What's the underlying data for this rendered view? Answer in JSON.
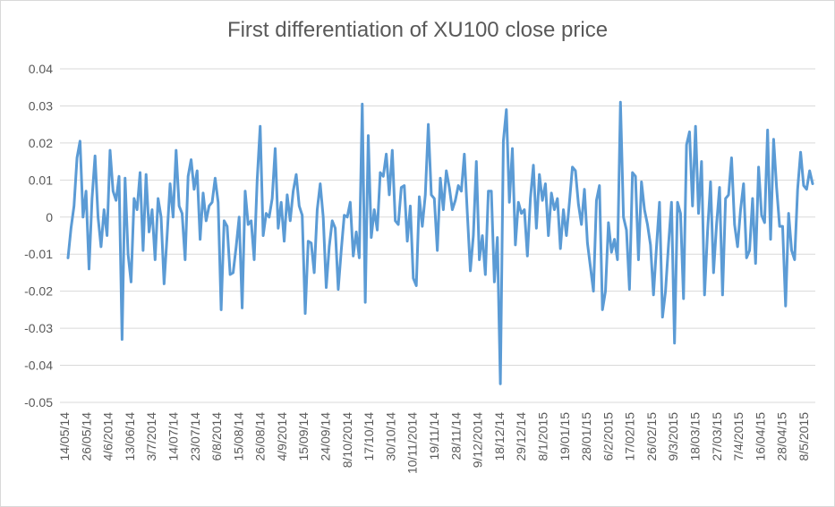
{
  "chart_data": {
    "type": "line",
    "title": "First differentiation of XU100 close price",
    "xlabel": "",
    "ylabel": "",
    "ylim": [
      -0.05,
      0.04
    ],
    "yticks": [
      "0.04",
      "0.03",
      "0.02",
      "0.01",
      "0",
      "-0.01",
      "-0.02",
      "-0.03",
      "-0.04",
      "-0.05"
    ],
    "ytick_values": [
      0.04,
      0.03,
      0.02,
      0.01,
      0,
      -0.01,
      -0.02,
      -0.03,
      -0.04,
      -0.05
    ],
    "grid": true,
    "legend": "none",
    "line_color": "#5b9bd5",
    "x_tick_labels": [
      "14/05/14",
      "26/05/14",
      "4/6/2014",
      "13/06/14",
      "3/7/2014",
      "14/07/14",
      "23/07/14",
      "6/8/2014",
      "15/08/14",
      "26/08/14",
      "4/9/2014",
      "15/09/14",
      "24/09/14",
      "8/10/2014",
      "17/10/14",
      "30/10/14",
      "10/11/2014",
      "19/11/14",
      "28/11/14",
      "9/12/2014",
      "18/12/14",
      "29/12/14",
      "8/1/2015",
      "19/01/15",
      "28/01/15",
      "6/2/2015",
      "17/02/15",
      "26/02/15",
      "9/3/2015",
      "18/03/15",
      "27/03/15",
      "7/4/2015",
      "16/04/15",
      "28/04/15",
      "8/5/2015"
    ],
    "values": [
      -0.011,
      -0.003,
      0.003,
      0.016,
      0.0205,
      0.0,
      0.007,
      -0.014,
      0.005,
      0.0165,
      0.0,
      -0.008,
      0.002,
      -0.005,
      0.018,
      0.007,
      0.0045,
      0.011,
      -0.033,
      0.0105,
      -0.01,
      -0.0175,
      0.005,
      0.002,
      0.012,
      -0.009,
      0.0115,
      -0.004,
      0.002,
      -0.0115,
      0.005,
      0.0,
      -0.018,
      -0.005,
      0.009,
      0.0,
      0.018,
      0.003,
      0.001,
      -0.0115,
      0.011,
      0.0155,
      0.0075,
      0.0125,
      -0.006,
      0.0065,
      -0.001,
      0.003,
      0.004,
      0.0105,
      0.004,
      -0.025,
      -0.001,
      -0.0025,
      -0.0155,
      -0.015,
      -0.008,
      0.0,
      -0.0245,
      0.007,
      -0.002,
      -0.001,
      -0.0115,
      0.01,
      0.0245,
      -0.005,
      0.001,
      0.0,
      0.005,
      0.0185,
      -0.003,
      0.004,
      -0.0065,
      0.006,
      -0.001,
      0.007,
      0.0115,
      0.003,
      0.0005,
      -0.026,
      -0.0065,
      -0.007,
      -0.015,
      0.002,
      0.009,
      0.0,
      -0.019,
      -0.008,
      -0.001,
      -0.003,
      -0.0195,
      -0.009,
      0.0005,
      0.0,
      0.004,
      -0.0105,
      -0.004,
      -0.011,
      0.0305,
      -0.023,
      0.022,
      -0.0055,
      0.002,
      -0.0035,
      0.012,
      0.011,
      0.017,
      0.006,
      0.018,
      -0.001,
      -0.002,
      0.008,
      0.0085,
      -0.0065,
      0.003,
      -0.0165,
      -0.0185,
      0.0055,
      -0.0025,
      0.006,
      0.025,
      0.006,
      0.005,
      -0.009,
      0.0105,
      0.002,
      0.0125,
      0.008,
      0.002,
      0.0045,
      0.0085,
      0.007,
      0.017,
      0.001,
      -0.0145,
      -0.005,
      0.015,
      -0.0115,
      -0.005,
      -0.0155,
      0.007,
      0.007,
      -0.0175,
      -0.0055,
      -0.045,
      0.0205,
      0.029,
      0.004,
      0.0185,
      -0.0075,
      0.004,
      0.001,
      0.002,
      -0.0105,
      0.005,
      0.014,
      -0.003,
      0.0115,
      0.0045,
      0.009,
      -0.005,
      0.0065,
      0.002,
      0.005,
      -0.0085,
      0.002,
      -0.005,
      0.004,
      0.0135,
      0.0125,
      0.0035,
      -0.002,
      0.0075,
      -0.007,
      -0.0135,
      -0.02,
      0.0045,
      0.0085,
      -0.025,
      -0.02,
      -0.0015,
      -0.0095,
      -0.006,
      -0.0115,
      0.031,
      0.0,
      -0.0035,
      -0.0195,
      0.012,
      0.011,
      -0.0115,
      0.0095,
      0.002,
      -0.002,
      -0.0075,
      -0.021,
      -0.008,
      0.004,
      -0.027,
      -0.02,
      -0.0075,
      0.004,
      -0.034,
      0.004,
      0.001,
      -0.022,
      0.0195,
      0.023,
      0.003,
      0.0245,
      0.001,
      0.015,
      -0.021,
      -0.004,
      0.0095,
      -0.015,
      -0.002,
      0.008,
      -0.021,
      0.005,
      0.006,
      0.016,
      -0.002,
      -0.008,
      0.002,
      0.009,
      -0.011,
      -0.009,
      0.005,
      -0.0125,
      0.0135,
      0.0005,
      -0.0015,
      0.0235,
      -0.006,
      0.021,
      0.008,
      -0.0025,
      -0.0025,
      -0.024,
      0.001,
      -0.009,
      -0.0115,
      0.0075,
      0.0175,
      0.0085,
      0.0075,
      0.0125,
      0.009
    ]
  }
}
